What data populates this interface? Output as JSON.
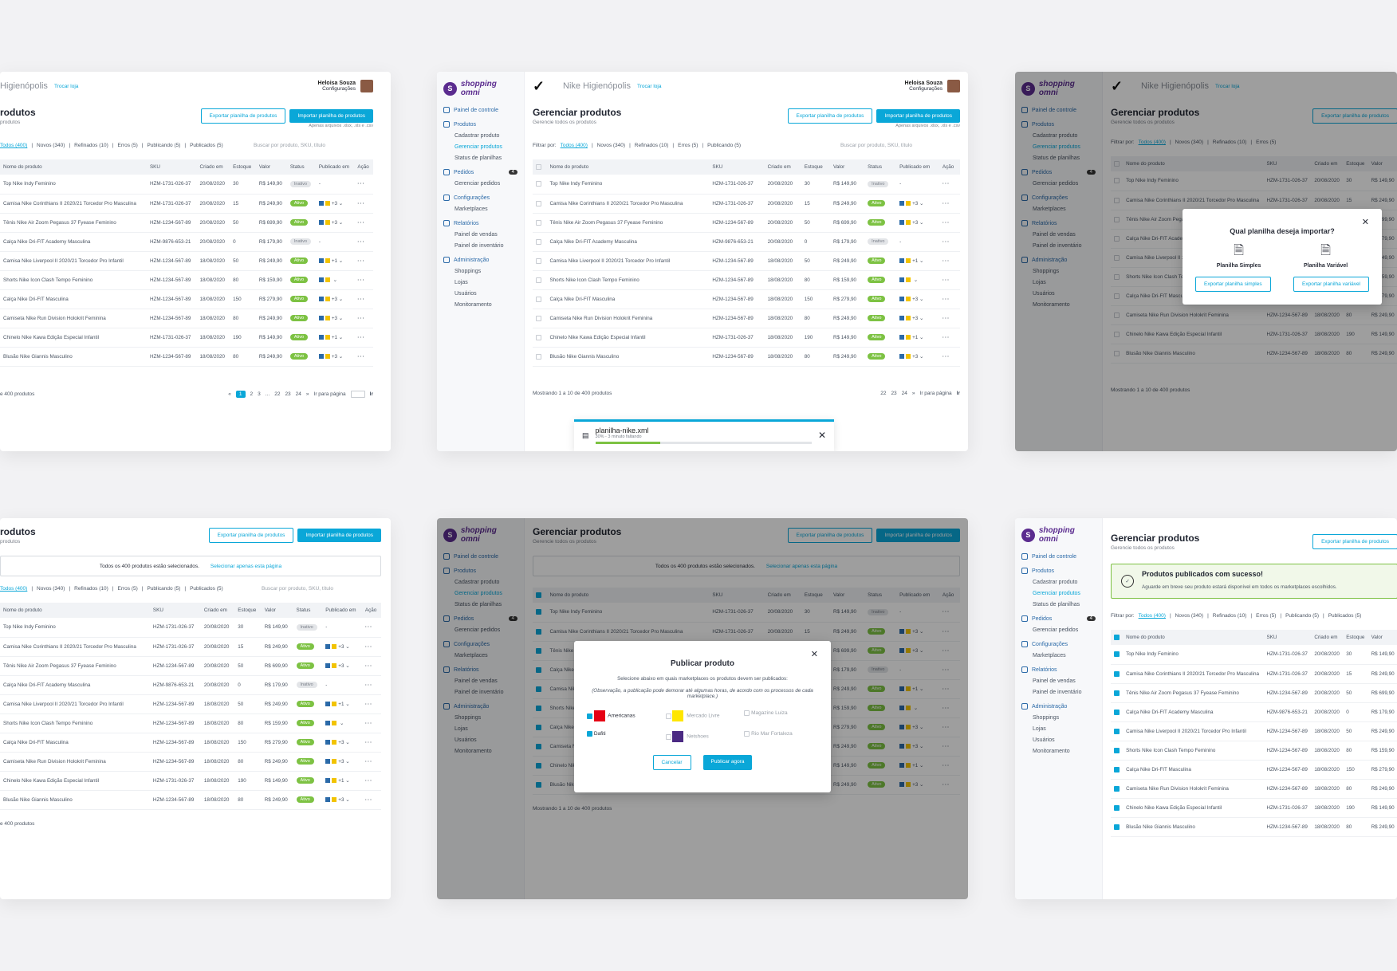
{
  "app": {
    "logo_text": "shopping omni",
    "store": "Nike Higienópolis",
    "store_cut": "Higienópolis",
    "trocar": "Trocar loja",
    "user_name": "Heloisa Souza",
    "user_role": "Configurações"
  },
  "sidebar": {
    "painel": "Painel de controle",
    "produtos": "Produtos",
    "cadastrar": "Cadastrar produto",
    "gerenciar": "Gerenciar produtos",
    "status": "Status de planilhas",
    "pedidos": "Pedidos",
    "pedidos_badge": "4",
    "gerenciar_pedidos": "Gerenciar pedidos",
    "config": "Configurações",
    "marketplaces": "Marketplaces",
    "relatorios": "Relatórios",
    "painel_vendas": "Painel de vendas",
    "painel_inventario": "Painel de inventário",
    "admin": "Administração",
    "shoppings": "Shoppings",
    "lojas": "Lojas",
    "usuarios": "Usuários",
    "monitoramento": "Monitoramento"
  },
  "page": {
    "title": "Gerenciar produtos",
    "title_cut": "rodutos",
    "subtitle": "Gerencie todos os produtos",
    "subtitle_cut": "produtos",
    "export": "Exportar planilha de produtos",
    "import": "Importar planilha de produtos",
    "hint": "Apenas arquivos .xlsx, .xls e .csv",
    "filter_label": "Filtrar por:",
    "filters": [
      "Todos (400)",
      "Novos (340)",
      "Refinados (10)",
      "Erros (5)",
      "Publicando (5)",
      "Publicados (5)"
    ],
    "search_placeholder": "Buscar por produto, SKU, título",
    "selection_text": "Todos os 400 produtos estão selecionados.",
    "selection_link": "Selecionar apenas esta página",
    "showing": "Mostrando 1 a 10 de 400 produtos",
    "showing_cut": "e 400 produtos",
    "go_to_page": "Ir para página",
    "go": "Ir"
  },
  "table": {
    "headers": [
      "Nome do produto",
      "SKU",
      "Criado em",
      "Estoque",
      "Valor",
      "Status",
      "Publicado em",
      "Ação"
    ],
    "rows": [
      {
        "name": "Top Nike Indy Feminino",
        "sku": "HZM-1731-026-37",
        "date": "20/08/2020",
        "stock": "30",
        "price": "R$ 149,90",
        "status": "Inativo",
        "pub": "-"
      },
      {
        "name": "Camisa Nike Corinthians II 2020/21 Torcedor Pro Masculina",
        "sku": "HZM-1731-026-37",
        "date": "20/08/2020",
        "stock": "15",
        "price": "R$ 249,90",
        "status": "Ativo",
        "pub": "+3"
      },
      {
        "name": "Tênis Nike Air Zoom Pegasus 37 Fyease Feminino",
        "sku": "HZM-1234-567-89",
        "date": "20/08/2020",
        "stock": "50",
        "price": "R$ 699,90",
        "status": "Ativo",
        "pub": "+3"
      },
      {
        "name": "Calça Nike Dri-FIT Academy Masculina",
        "sku": "HZM-9876-653-21",
        "date": "20/08/2020",
        "stock": "0",
        "price": "R$ 179,90",
        "status": "Inativo",
        "pub": "-"
      },
      {
        "name": "Camisa Nike Liverpool II 2020/21 Torcedor Pro Infantil",
        "sku": "HZM-1234-567-89",
        "date": "18/08/2020",
        "stock": "50",
        "price": "R$ 249,90",
        "status": "Ativo",
        "pub": "+1"
      },
      {
        "name": "Shorts Nike Icon Clash Tempo Feminino",
        "sku": "HZM-1234-567-89",
        "date": "18/08/2020",
        "stock": "80",
        "price": "R$ 159,90",
        "status": "Ativo",
        "pub": ""
      },
      {
        "name": "Calça Nike Dri-FIT Masculina",
        "sku": "HZM-1234-567-89",
        "date": "18/08/2020",
        "stock": "150",
        "price": "R$ 279,90",
        "status": "Ativo",
        "pub": "+3"
      },
      {
        "name": "Camiseta Nike Run Division Holokrit Feminina",
        "sku": "HZM-1234-567-89",
        "date": "18/08/2020",
        "stock": "80",
        "price": "R$ 249,90",
        "status": "Ativo",
        "pub": "+3"
      },
      {
        "name": "Chinelo Nike Kawa Edição Especial Infantil",
        "sku": "HZM-1731-026-37",
        "date": "18/08/2020",
        "stock": "190",
        "price": "R$ 149,90",
        "status": "Ativo",
        "pub": "+1"
      },
      {
        "name": "Blusão Nike Giannis Masculino",
        "sku": "HZM-1234-567-89",
        "date": "18/08/2020",
        "stock": "80",
        "price": "R$ 249,90",
        "status": "Ativo",
        "pub": "+3"
      }
    ]
  },
  "upload": {
    "file": "planilha-nike.xml",
    "progress_text": "30% - 3 minuto faltando",
    "progress": 0.3
  },
  "import_modal": {
    "title": "Qual planilha deseja importar?",
    "simple": "Planilha Simples",
    "variable": "Planilha Variável",
    "export_simple": "Exportar planilha simples",
    "export_variable": "Exportar planilha variável"
  },
  "publish_modal": {
    "title": "Publicar produto",
    "desc": "Selecione abaixo em quais marketplaces os produtos devem ser publicados:",
    "note": "(Observação, a publicação pode demorar até algumas horas, de acordo com os processos de cada marketplace.)",
    "markets": [
      "Americanas",
      "Mercado Livre",
      "Magazine Luiza",
      "Dafiti",
      "Netshoes",
      "Rio Mar Fortaleza"
    ],
    "cancel": "Cancelar",
    "publish": "Publicar agora"
  },
  "success": {
    "title": "Produtos publicados com sucesso!",
    "text": "Aguarde em breve seu produto estará disponível em todos os marketplaces escolhidos."
  },
  "colors": {
    "accent": "#0aa7d8",
    "active": "#7dc243",
    "brand": "#5b2c8f"
  }
}
